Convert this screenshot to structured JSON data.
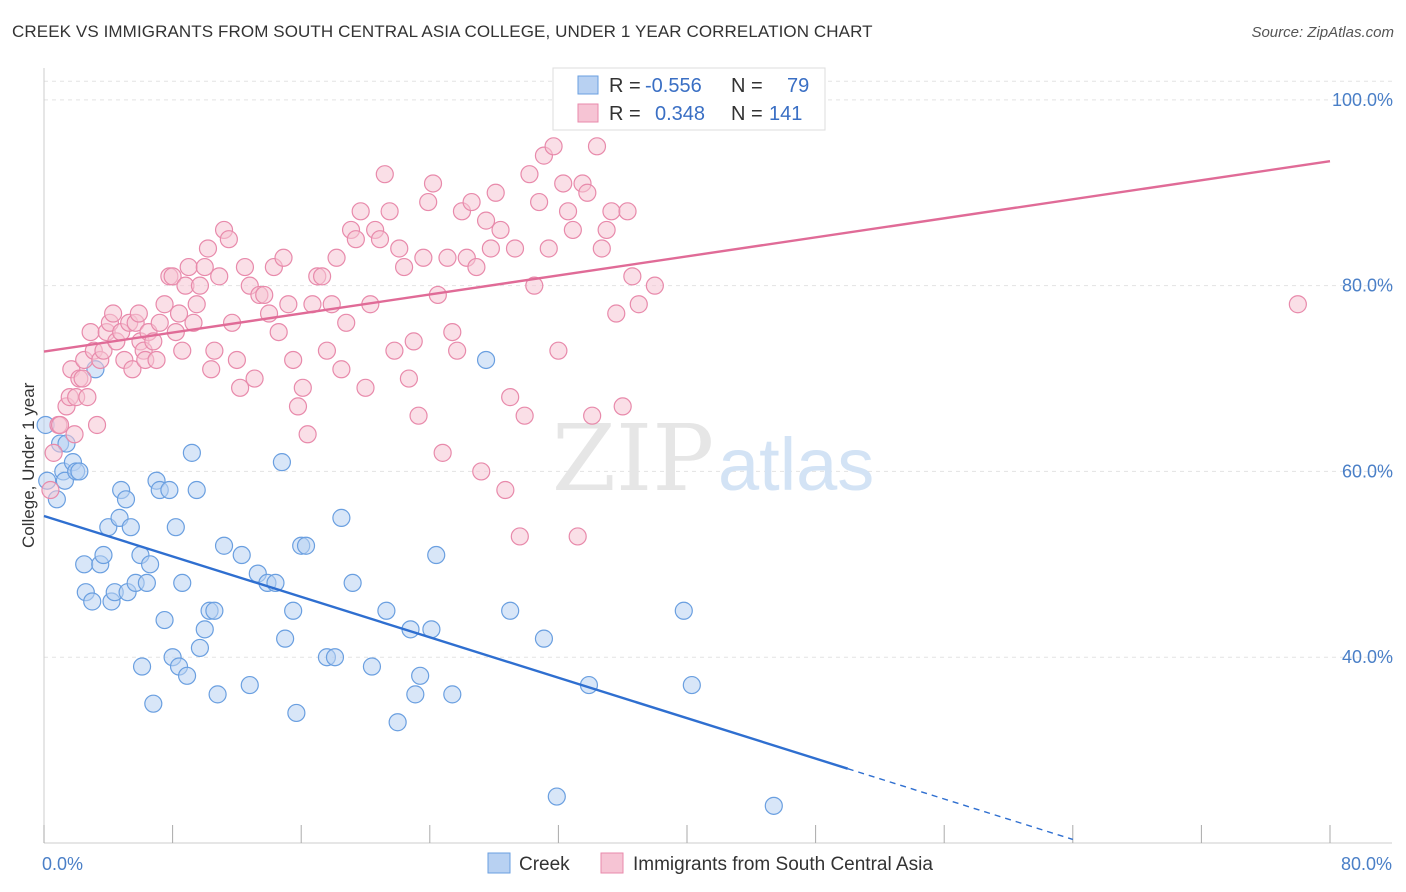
{
  "title": "CREEK VS IMMIGRANTS FROM SOUTH CENTRAL ASIA COLLEGE, UNDER 1 YEAR CORRELATION CHART",
  "source": "Source: ZipAtlas.com",
  "watermark": {
    "zip": "ZIP",
    "atlas": "atlas"
  },
  "chart_data": {
    "type": "scatter",
    "xlabel": "",
    "ylabel": "College, Under 1 year",
    "xlim": [
      0,
      80
    ],
    "ylim": [
      20,
      103
    ],
    "x_ticks": [
      0,
      8,
      16,
      24,
      32,
      40,
      48,
      56,
      64,
      72,
      80
    ],
    "x_tick_labels": [
      {
        "value": 0,
        "label": "0.0%"
      },
      {
        "value": 80,
        "label": "80.0%"
      }
    ],
    "y_tick_labels": [
      {
        "value": 40,
        "label": "40.0%"
      },
      {
        "value": 60,
        "label": "60.0%"
      },
      {
        "value": 80,
        "label": "80.0%"
      },
      {
        "value": 100,
        "label": "100.0%"
      }
    ],
    "grid": true,
    "legend_position": "top-center",
    "legend": [
      {
        "r_label": "R =",
        "r_value": "-0.556",
        "n_label": "N =",
        "n_value": "79"
      },
      {
        "r_label": "R =",
        "r_value": "0.348",
        "n_label": "N =",
        "n_value": "141"
      }
    ],
    "series": [
      {
        "name": "Creek",
        "color": "#6a9fe0",
        "fill": "#b8d1f2",
        "line_color": "#2f6fd0",
        "trend": {
          "x0": 0,
          "y0": 55.2,
          "x1": 50,
          "y1": 28.0,
          "dash_to_x": 64
        },
        "points": [
          [
            0.1,
            65
          ],
          [
            0.2,
            59
          ],
          [
            0.8,
            57
          ],
          [
            1.0,
            63
          ],
          [
            1.2,
            60
          ],
          [
            1.3,
            59
          ],
          [
            1.4,
            63
          ],
          [
            1.8,
            61
          ],
          [
            2.0,
            60
          ],
          [
            2.2,
            60
          ],
          [
            2.5,
            50
          ],
          [
            2.6,
            47
          ],
          [
            3.0,
            46
          ],
          [
            3.2,
            71
          ],
          [
            3.5,
            50
          ],
          [
            3.7,
            51
          ],
          [
            4.0,
            54
          ],
          [
            4.2,
            46
          ],
          [
            4.4,
            47
          ],
          [
            4.7,
            55
          ],
          [
            4.8,
            58
          ],
          [
            5.1,
            57
          ],
          [
            5.2,
            47
          ],
          [
            5.4,
            54
          ],
          [
            5.7,
            48
          ],
          [
            6.0,
            51
          ],
          [
            6.1,
            39
          ],
          [
            6.4,
            48
          ],
          [
            6.6,
            50
          ],
          [
            6.8,
            35
          ],
          [
            7.0,
            59
          ],
          [
            7.2,
            58
          ],
          [
            7.5,
            44
          ],
          [
            7.8,
            58
          ],
          [
            8.0,
            40
          ],
          [
            8.2,
            54
          ],
          [
            8.4,
            39
          ],
          [
            8.6,
            48
          ],
          [
            8.9,
            38
          ],
          [
            9.2,
            62
          ],
          [
            9.5,
            58
          ],
          [
            9.7,
            41
          ],
          [
            10.0,
            43
          ],
          [
            10.3,
            45
          ],
          [
            10.6,
            45
          ],
          [
            10.8,
            36
          ],
          [
            11.2,
            52
          ],
          [
            12.3,
            51
          ],
          [
            12.8,
            37
          ],
          [
            13.3,
            49
          ],
          [
            13.9,
            48
          ],
          [
            14.4,
            48
          ],
          [
            14.8,
            61
          ],
          [
            15.0,
            42
          ],
          [
            15.5,
            45
          ],
          [
            15.7,
            34
          ],
          [
            16.0,
            52
          ],
          [
            16.3,
            52
          ],
          [
            17.6,
            40
          ],
          [
            18.1,
            40
          ],
          [
            18.5,
            55
          ],
          [
            19.2,
            48
          ],
          [
            20.4,
            39
          ],
          [
            21.3,
            45
          ],
          [
            22.0,
            33
          ],
          [
            22.8,
            43
          ],
          [
            23.1,
            36
          ],
          [
            23.4,
            38
          ],
          [
            24.1,
            43
          ],
          [
            24.4,
            51
          ],
          [
            25.4,
            36
          ],
          [
            27.5,
            72
          ],
          [
            29.0,
            45
          ],
          [
            31.1,
            42
          ],
          [
            31.9,
            25
          ],
          [
            33.9,
            37
          ],
          [
            39.8,
            45
          ],
          [
            40.3,
            37
          ],
          [
            45.4,
            24
          ]
        ]
      },
      {
        "name": "Immigrants from South Central Asia",
        "color": "#e88aab",
        "fill": "#f6c4d4",
        "line_color": "#e06b97",
        "trend": {
          "x0": 0,
          "y0": 72.9,
          "x1": 80,
          "y1": 93.4
        },
        "points": [
          [
            0.4,
            58
          ],
          [
            0.6,
            62
          ],
          [
            0.9,
            65
          ],
          [
            1.0,
            65
          ],
          [
            1.4,
            67
          ],
          [
            1.6,
            68
          ],
          [
            1.7,
            71
          ],
          [
            1.9,
            64
          ],
          [
            2.0,
            68
          ],
          [
            2.2,
            70
          ],
          [
            2.4,
            70
          ],
          [
            2.5,
            72
          ],
          [
            2.7,
            68
          ],
          [
            2.9,
            75
          ],
          [
            3.1,
            73
          ],
          [
            3.3,
            65
          ],
          [
            3.5,
            72
          ],
          [
            3.7,
            73
          ],
          [
            3.9,
            75
          ],
          [
            4.1,
            76
          ],
          [
            4.3,
            77
          ],
          [
            4.5,
            74
          ],
          [
            4.8,
            75
          ],
          [
            5.0,
            72
          ],
          [
            5.3,
            76
          ],
          [
            5.5,
            71
          ],
          [
            5.7,
            76
          ],
          [
            5.9,
            77
          ],
          [
            6.0,
            74
          ],
          [
            6.2,
            73
          ],
          [
            6.3,
            72
          ],
          [
            6.5,
            75
          ],
          [
            6.8,
            74
          ],
          [
            7.0,
            72
          ],
          [
            7.2,
            76
          ],
          [
            7.5,
            78
          ],
          [
            7.8,
            81
          ],
          [
            8.0,
            81
          ],
          [
            8.2,
            75
          ],
          [
            8.4,
            77
          ],
          [
            8.6,
            73
          ],
          [
            8.8,
            80
          ],
          [
            9.0,
            82
          ],
          [
            9.3,
            76
          ],
          [
            9.5,
            78
          ],
          [
            9.7,
            80
          ],
          [
            10.0,
            82
          ],
          [
            10.2,
            84
          ],
          [
            10.4,
            71
          ],
          [
            10.6,
            73
          ],
          [
            10.9,
            81
          ],
          [
            11.2,
            86
          ],
          [
            11.5,
            85
          ],
          [
            11.7,
            76
          ],
          [
            12.0,
            72
          ],
          [
            12.2,
            69
          ],
          [
            12.5,
            82
          ],
          [
            12.8,
            80
          ],
          [
            13.1,
            70
          ],
          [
            13.4,
            79
          ],
          [
            13.7,
            79
          ],
          [
            14.0,
            77
          ],
          [
            14.3,
            82
          ],
          [
            14.6,
            75
          ],
          [
            14.9,
            83
          ],
          [
            15.2,
            78
          ],
          [
            15.5,
            72
          ],
          [
            15.8,
            67
          ],
          [
            16.1,
            69
          ],
          [
            16.4,
            64
          ],
          [
            16.7,
            78
          ],
          [
            17.0,
            81
          ],
          [
            17.3,
            81
          ],
          [
            17.6,
            73
          ],
          [
            17.9,
            78
          ],
          [
            18.2,
            83
          ],
          [
            18.5,
            71
          ],
          [
            18.8,
            76
          ],
          [
            19.1,
            86
          ],
          [
            19.4,
            85
          ],
          [
            19.7,
            88
          ],
          [
            20.0,
            69
          ],
          [
            20.3,
            78
          ],
          [
            20.6,
            86
          ],
          [
            20.9,
            85
          ],
          [
            21.2,
            92
          ],
          [
            21.5,
            88
          ],
          [
            21.8,
            73
          ],
          [
            22.1,
            84
          ],
          [
            22.4,
            82
          ],
          [
            22.7,
            70
          ],
          [
            23.0,
            74
          ],
          [
            23.3,
            66
          ],
          [
            23.6,
            83
          ],
          [
            23.9,
            89
          ],
          [
            24.2,
            91
          ],
          [
            24.5,
            79
          ],
          [
            24.8,
            62
          ],
          [
            25.1,
            83
          ],
          [
            25.4,
            75
          ],
          [
            25.7,
            73
          ],
          [
            26.0,
            88
          ],
          [
            26.3,
            83
          ],
          [
            26.6,
            89
          ],
          [
            26.9,
            82
          ],
          [
            27.2,
            60
          ],
          [
            27.5,
            87
          ],
          [
            27.8,
            84
          ],
          [
            28.1,
            90
          ],
          [
            28.4,
            86
          ],
          [
            28.7,
            58
          ],
          [
            29.0,
            68
          ],
          [
            29.3,
            84
          ],
          [
            29.6,
            53
          ],
          [
            29.9,
            66
          ],
          [
            30.2,
            92
          ],
          [
            30.5,
            80
          ],
          [
            30.8,
            89
          ],
          [
            31.1,
            94
          ],
          [
            31.4,
            84
          ],
          [
            31.7,
            95
          ],
          [
            32.0,
            73
          ],
          [
            32.3,
            91
          ],
          [
            32.6,
            88
          ],
          [
            32.9,
            86
          ],
          [
            33.2,
            53
          ],
          [
            33.5,
            91
          ],
          [
            33.8,
            90
          ],
          [
            34.1,
            66
          ],
          [
            34.4,
            95
          ],
          [
            34.7,
            84
          ],
          [
            35.0,
            86
          ],
          [
            35.3,
            88
          ],
          [
            35.6,
            77
          ],
          [
            36.0,
            67
          ],
          [
            36.3,
            88
          ],
          [
            36.6,
            81
          ],
          [
            37.0,
            78
          ],
          [
            38.0,
            80
          ],
          [
            78.0,
            78
          ]
        ]
      }
    ]
  }
}
